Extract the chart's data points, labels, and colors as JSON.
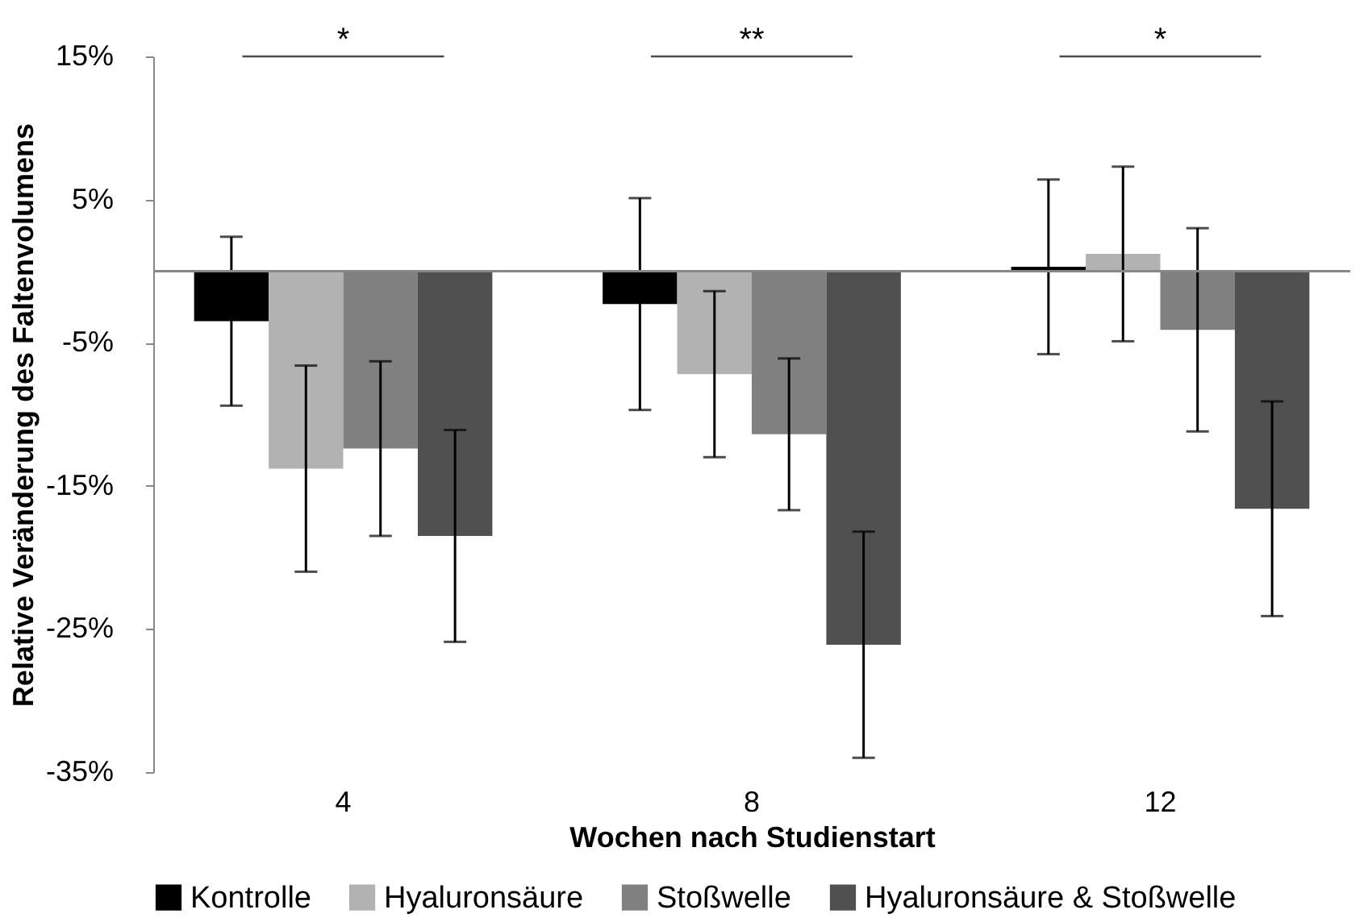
{
  "chart_data": {
    "type": "bar",
    "xlabel": "Wochen nach Studienstart",
    "ylabel": "Relative Veränderung des Faltenvolumens",
    "categories": [
      "4",
      "8",
      "12"
    ],
    "series": [
      {
        "name": "Kontrolle",
        "color": "#000000",
        "values": [
          -3.5,
          -2.3,
          0.3
        ],
        "errors": [
          5.9,
          7.4,
          6.1
        ]
      },
      {
        "name": "Hyaluronsäure",
        "color": "#b2b2b2",
        "values": [
          -13.8,
          -7.2,
          1.2
        ],
        "errors": [
          7.2,
          5.8,
          6.1
        ]
      },
      {
        "name": "Stoßwelle",
        "color": "#808080",
        "values": [
          -12.4,
          -11.4,
          -4.1
        ],
        "errors": [
          6.1,
          5.3,
          7.1
        ]
      },
      {
        "name": "Hyaluronsäure & Stoßwelle",
        "color": "#505050",
        "values": [
          -18.5,
          -26.1,
          -16.6
        ],
        "errors": [
          7.4,
          7.9,
          7.5
        ]
      }
    ],
    "ylim": [
      -35,
      15
    ],
    "yticks": [
      {
        "value": 15,
        "label": "15%"
      },
      {
        "value": 5,
        "label": "5%"
      },
      {
        "value": -5,
        "label": "-5%"
      },
      {
        "value": -15,
        "label": "-15%"
      },
      {
        "value": -25,
        "label": "-25%"
      },
      {
        "value": -35,
        "label": "-35%"
      }
    ],
    "grid": false,
    "legend": "bottom",
    "annotations": [
      "*",
      "**",
      "*"
    ]
  }
}
